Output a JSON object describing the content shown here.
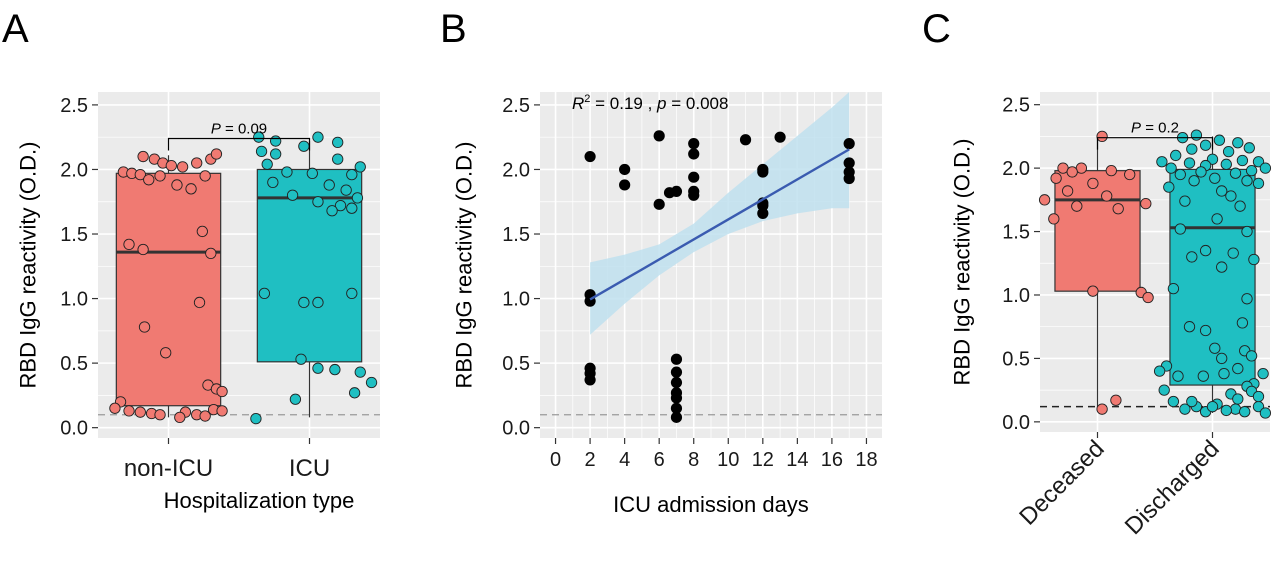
{
  "chart_data": [
    {
      "panel": "A",
      "type": "box",
      "xlabel": "Hospitalization type",
      "ylabel": "RBD IgG reactivity (O.D.)",
      "ylim": [
        -0.08,
        2.6
      ],
      "yticks": [
        0.0,
        0.5,
        1.0,
        1.5,
        2.0,
        2.5
      ],
      "ytick_labels": [
        "0.0",
        "0.5",
        "1.0",
        "1.5",
        "2.0",
        "2.5"
      ],
      "grid": true,
      "cutoff": 0.1,
      "categories": [
        "non-ICU",
        "ICU"
      ],
      "colors": [
        "#F07A72",
        "#1FBFC2"
      ],
      "boxes": [
        {
          "category": "non-ICU",
          "q1": 0.17,
          "median": 1.36,
          "q3": 1.97,
          "whisker_low": 0.08,
          "whisker_high": 2.11
        },
        {
          "category": "ICU",
          "q1": 0.51,
          "median": 1.78,
          "q3": 2.0,
          "whisker_low": 0.08,
          "whisker_high": 2.22
        }
      ],
      "points": [
        {
          "category": "non-ICU",
          "values": [
            2.1,
            2.08,
            2.05,
            2.03,
            2.02,
            2.05,
            2.08,
            2.12,
            1.98,
            1.97,
            1.96,
            1.95,
            1.92,
            1.88,
            1.85,
            1.95,
            1.52,
            1.42,
            1.38,
            1.35,
            0.97,
            0.78,
            0.58,
            0.33,
            0.3,
            0.28,
            0.2,
            0.15,
            0.13,
            0.12,
            0.12,
            0.11,
            0.1,
            0.1,
            0.09,
            0.08,
            0.14,
            0.13
          ],
          "jitter": [
            -0.18,
            -0.1,
            -0.04,
            0.02,
            0.1,
            0.2,
            0.3,
            0.34,
            -0.32,
            -0.26,
            -0.2,
            0.26,
            -0.14,
            0.06,
            0.16,
            -0.06,
            0.24,
            -0.28,
            -0.18,
            0.3,
            0.22,
            -0.17,
            -0.02,
            0.28,
            0.34,
            0.38,
            -0.34,
            -0.38,
            -0.28,
            -0.2,
            0.12,
            -0.12,
            -0.06,
            0.2,
            0.26,
            0.08,
            0.32,
            0.38
          ]
        },
        {
          "category": "ICU",
          "values": [
            2.25,
            2.22,
            2.25,
            2.21,
            2.18,
            2.14,
            2.12,
            2.08,
            2.04,
            2.02,
            1.98,
            1.96,
            1.97,
            1.9,
            1.88,
            1.84,
            1.8,
            1.78,
            1.75,
            1.72,
            1.7,
            1.68,
            1.04,
            1.04,
            0.97,
            0.97,
            0.53,
            0.46,
            0.45,
            0.43,
            0.35,
            0.27,
            0.22,
            0.07
          ],
          "jitter": [
            -0.36,
            -0.24,
            0.06,
            0.2,
            -0.04,
            -0.34,
            -0.24,
            0.2,
            -0.3,
            0.36,
            -0.16,
            0.3,
            0.02,
            -0.26,
            0.14,
            0.26,
            -0.12,
            0.34,
            0.06,
            0.22,
            0.3,
            0.16,
            -0.32,
            0.3,
            -0.04,
            0.06,
            -0.06,
            0.06,
            0.18,
            0.36,
            0.44,
            0.32,
            -0.1,
            -0.38
          ]
        }
      ],
      "comparison": {
        "label": "P = 0.09",
        "y": 2.24
      }
    },
    {
      "panel": "B",
      "type": "scatter",
      "xlabel": "ICU admission days",
      "ylabel": "RBD IgG reactivity (O.D.)",
      "xlim": [
        -0.9,
        18.9
      ],
      "ylim": [
        -0.08,
        2.6
      ],
      "xticks": [
        0,
        2,
        4,
        6,
        8,
        10,
        12,
        14,
        16,
        18
      ],
      "xtick_labels": [
        "0",
        "2",
        "4",
        "6",
        "8",
        "10",
        "12",
        "14",
        "16",
        "18"
      ],
      "yticks": [
        0.0,
        0.5,
        1.0,
        1.5,
        2.0,
        2.5
      ],
      "ytick_labels": [
        "0.0",
        "0.5",
        "1.0",
        "1.5",
        "2.0",
        "2.5"
      ],
      "grid": true,
      "cutoff": 0.1,
      "point_color": "#000000",
      "x": [
        2,
        2,
        2,
        2,
        2,
        2,
        4,
        4,
        6,
        6,
        6.6,
        7,
        7,
        7,
        7,
        7,
        7,
        7,
        7,
        8,
        8,
        8,
        8,
        8,
        11,
        12,
        12,
        12,
        12,
        12,
        13,
        17,
        17,
        17,
        17
      ],
      "y": [
        2.1,
        1.03,
        0.98,
        0.46,
        0.42,
        0.37,
        2.0,
        1.88,
        2.26,
        1.73,
        1.82,
        1.83,
        0.53,
        0.43,
        0.35,
        0.27,
        0.23,
        0.15,
        0.08,
        2.2,
        2.12,
        1.94,
        1.83,
        1.8,
        2.23,
        2.0,
        1.98,
        1.74,
        1.72,
        1.66,
        2.25,
        2.2,
        2.05,
        1.98,
        1.93
      ],
      "regression": {
        "slope": 0.0775,
        "intercept": 0.838,
        "x_range": [
          2,
          17
        ]
      },
      "confidence_band": {
        "x": [
          2,
          4,
          6,
          8,
          10,
          12,
          14,
          16,
          17
        ],
        "lower": [
          0.72,
          0.96,
          1.18,
          1.36,
          1.5,
          1.6,
          1.66,
          1.7,
          1.7
        ],
        "upper": [
          1.28,
          1.34,
          1.42,
          1.58,
          1.82,
          2.04,
          2.26,
          2.48,
          2.6
        ]
      },
      "annotation": {
        "r2_label": "R",
        "r2_sup": "2",
        "rest": " = 0.19 , ",
        "p_label": "p",
        "p_rest": " = 0.008"
      }
    },
    {
      "panel": "C",
      "type": "box",
      "xlabel": "",
      "ylabel": "RBD IgG reactivity (O.D.)",
      "ylim": [
        -0.08,
        2.6
      ],
      "yticks": [
        0.0,
        0.5,
        1.0,
        1.5,
        2.0,
        2.5
      ],
      "ytick_labels": [
        "0.0",
        "0.5",
        "1.0",
        "1.5",
        "2.0",
        "2.5"
      ],
      "grid": true,
      "cutoff": 0.12,
      "categories": [
        "Deceased",
        "Discharged"
      ],
      "colors": [
        "#F07A72",
        "#1FBFC2"
      ],
      "boxes": [
        {
          "category": "Deceased",
          "q1": 1.03,
          "median": 1.75,
          "q3": 1.98,
          "whisker_low": 0.1,
          "whisker_high": 2.24
        },
        {
          "category": "Discharged",
          "q1": 0.29,
          "median": 1.53,
          "q3": 1.99,
          "whisker_low": 0.07,
          "whisker_high": 2.25
        }
      ],
      "points": [
        {
          "category": "Deceased",
          "values": [
            2.25,
            2.0,
            2.0,
            1.98,
            1.97,
            1.95,
            1.92,
            1.88,
            1.82,
            1.78,
            1.75,
            1.72,
            1.7,
            1.68,
            1.6,
            1.03,
            1.02,
            0.98,
            0.17,
            0.1
          ],
          "jitter": [
            0.04,
            -0.3,
            -0.14,
            0.12,
            -0.22,
            0.28,
            -0.36,
            -0.04,
            -0.26,
            0.08,
            -0.46,
            0.42,
            -0.18,
            0.18,
            -0.38,
            -0.04,
            0.38,
            0.44,
            0.16,
            0.04
          ]
        },
        {
          "category": "Discharged",
          "values": [
            2.26,
            2.24,
            2.22,
            2.2,
            2.18,
            2.16,
            2.15,
            2.13,
            2.1,
            2.07,
            2.06,
            2.05,
            2.05,
            2.04,
            2.03,
            2.02,
            2.0,
            2.0,
            1.98,
            1.97,
            1.96,
            1.95,
            1.92,
            1.9,
            1.9,
            1.88,
            1.85,
            1.82,
            1.78,
            1.74,
            1.7,
            1.6,
            1.52,
            1.5,
            1.35,
            1.33,
            1.3,
            1.28,
            1.22,
            1.05,
            0.97,
            0.78,
            0.75,
            0.72,
            0.58,
            0.56,
            0.52,
            0.5,
            0.44,
            0.42,
            0.4,
            0.38,
            0.36,
            0.3,
            0.28,
            0.25,
            0.22,
            0.18,
            0.16,
            0.14,
            0.12,
            0.12,
            0.1,
            0.1,
            0.09,
            0.08,
            0.08,
            0.07,
            0.12,
            0.16,
            0.38,
            0.36,
            0.24,
            0.2
          ],
          "jitter": [
            -0.14,
            -0.26,
            0.06,
            0.22,
            -0.06,
            0.32,
            -0.18,
            0.14,
            -0.32,
            0.0,
            0.26,
            -0.44,
            0.4,
            -0.2,
            0.12,
            -0.06,
            0.46,
            -0.36,
            0.34,
            -0.1,
            0.2,
            -0.28,
            0.02,
            0.3,
            -0.16,
            0.4,
            -0.38,
            0.08,
            0.16,
            -0.24,
            0.24,
            0.04,
            -0.28,
            0.3,
            -0.06,
            0.18,
            -0.18,
            0.36,
            0.08,
            -0.34,
            0.3,
            0.26,
            -0.2,
            -0.06,
            0.02,
            0.28,
            0.34,
            0.08,
            -0.4,
            0.22,
            -0.46,
            0.44,
            -0.3,
            0.36,
            0.3,
            -0.42,
            0.16,
            0.22,
            -0.34,
            0.04,
            -0.14,
            0.4,
            -0.24,
            0.2,
            0.12,
            -0.06,
            0.28,
            0.46,
            0.0,
            -0.18,
            0.1,
            -0.08,
            0.34,
            0.4
          ]
        }
      ],
      "comparison": {
        "label": "P = 0.2",
        "y": 2.24
      }
    }
  ]
}
